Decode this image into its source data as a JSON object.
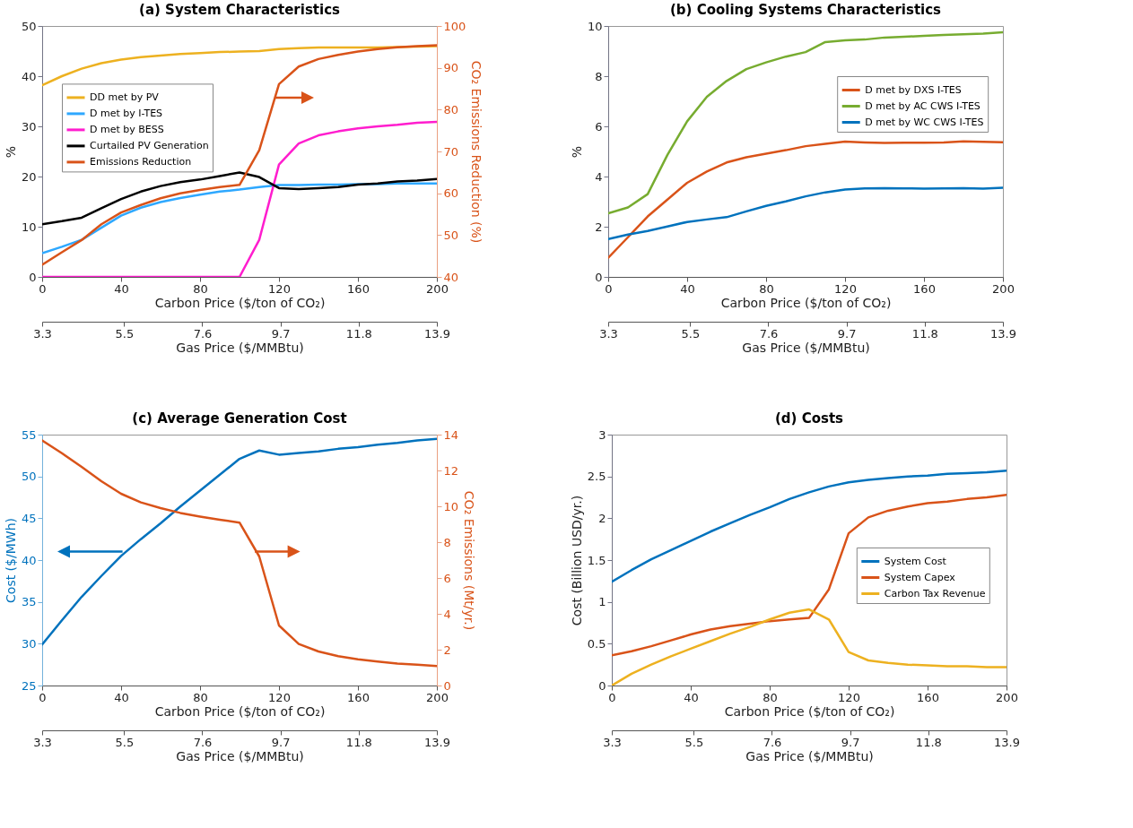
{
  "chart_data": [
    {
      "type": "line",
      "title": "(a) System Characteristics",
      "xlabel": "Carbon Price ($/ton of CO₂)",
      "x2label": "Gas Price ($/MMBtu)",
      "ylabel": "%",
      "y2label": "CO₂ Emissions Reduction (%)",
      "x": [
        0,
        10,
        20,
        30,
        40,
        50,
        60,
        70,
        80,
        90,
        100,
        110,
        120,
        130,
        140,
        150,
        160,
        170,
        180,
        190,
        200
      ],
      "xlim": [
        0,
        200
      ],
      "xticks": [
        0,
        40,
        80,
        120,
        160,
        200
      ],
      "x2lim": [
        3.3,
        13.9
      ],
      "x2ticks": [
        3.3,
        5.5,
        7.6,
        9.7,
        11.8,
        13.9
      ],
      "ylim": [
        0,
        50
      ],
      "yticks": [
        0,
        10,
        20,
        30,
        40,
        50
      ],
      "y2lim": [
        40,
        100
      ],
      "y2ticks": [
        40,
        50,
        60,
        70,
        80,
        90,
        100
      ],
      "legend": "left",
      "series": [
        {
          "name": "DD met by PV",
          "color": "#edb120",
          "values": [
            38.2,
            40,
            41.5,
            42.6,
            43.3,
            43.8,
            44.1,
            44.4,
            44.6,
            44.8,
            44.9,
            45,
            45.4,
            45.6,
            45.7,
            45.7,
            45.7,
            45.7,
            45.8,
            45.9,
            46
          ]
        },
        {
          "name": "D met by I-TES",
          "color": "#2ea8ff",
          "values": [
            4.7,
            6,
            7.4,
            9.8,
            12.2,
            13.8,
            14.9,
            15.7,
            16.4,
            17,
            17.4,
            17.9,
            18.3,
            18.3,
            18.4,
            18.4,
            18.5,
            18.5,
            18.6,
            18.6,
            18.6
          ]
        },
        {
          "name": "D met by BESS",
          "color": "#ff1dce",
          "values": [
            0,
            0,
            0,
            0,
            0,
            0,
            0,
            0,
            0,
            0,
            0,
            7.4,
            22.4,
            26.6,
            28.2,
            29,
            29.6,
            30,
            30.3,
            30.7,
            30.9
          ]
        },
        {
          "name": "Curtailed PV Generation",
          "color": "#000000",
          "values": [
            10.5,
            11.1,
            11.8,
            13.7,
            15.5,
            17,
            18.1,
            18.9,
            19.4,
            20.1,
            20.8,
            19.9,
            17.7,
            17.5,
            17.7,
            17.9,
            18.4,
            18.6,
            19,
            19.2,
            19.5
          ]
        },
        {
          "name": "Emissions Reduction",
          "color": "#d95319",
          "axis": "y2",
          "values": [
            42.9,
            45.9,
            48.8,
            52.6,
            55.4,
            57.2,
            58.8,
            60,
            60.8,
            61.5,
            62,
            70.3,
            86.1,
            90.3,
            92.1,
            93.1,
            93.9,
            94.5,
            94.9,
            95.2,
            95.4
          ]
        }
      ]
    },
    {
      "type": "line",
      "title": "(b) Cooling Systems Characteristics",
      "xlabel": "Carbon Price ($/ton of CO₂)",
      "x2label": "Gas Price ($/MMBtu)",
      "ylabel": "%",
      "x": [
        0,
        10,
        20,
        30,
        40,
        50,
        60,
        70,
        80,
        90,
        100,
        110,
        120,
        130,
        140,
        150,
        160,
        170,
        180,
        190,
        200
      ],
      "xlim": [
        0,
        200
      ],
      "xticks": [
        0,
        40,
        80,
        120,
        160,
        200
      ],
      "x2lim": [
        3.3,
        13.9
      ],
      "x2ticks": [
        3.3,
        5.5,
        7.6,
        9.7,
        11.8,
        13.9
      ],
      "ylim": [
        0,
        10
      ],
      "yticks": [
        0,
        2,
        4,
        6,
        8,
        10
      ],
      "legend": "top right",
      "series": [
        {
          "name": "D met by DXS I-TES",
          "color": "#d95319",
          "values": [
            0.76,
            1.58,
            2.41,
            3.08,
            3.75,
            4.2,
            4.56,
            4.77,
            4.91,
            5.05,
            5.21,
            5.3,
            5.39,
            5.36,
            5.34,
            5.35,
            5.35,
            5.36,
            5.4,
            5.38,
            5.37
          ]
        },
        {
          "name": "D met by AC CWS I-TES",
          "color": "#77ac30",
          "values": [
            2.53,
            2.77,
            3.3,
            4.86,
            6.2,
            7.18,
            7.81,
            8.28,
            8.55,
            8.78,
            8.96,
            9.36,
            9.43,
            9.46,
            9.54,
            9.57,
            9.61,
            9.64,
            9.67,
            9.7,
            9.75
          ]
        },
        {
          "name": "D met by WC CWS I-TES",
          "color": "#0072bd",
          "values": [
            1.51,
            1.69,
            1.83,
            2.01,
            2.19,
            2.29,
            2.38,
            2.61,
            2.83,
            3.01,
            3.21,
            3.37,
            3.48,
            3.53,
            3.54,
            3.53,
            3.52,
            3.53,
            3.54,
            3.52,
            3.55
          ]
        }
      ]
    },
    {
      "type": "line",
      "title": "(c) Average Generation Cost",
      "xlabel": "Carbon Price ($/ton of CO₂)",
      "x2label": "Gas Price ($/MMBtu)",
      "ylabel": "Cost ($/MWh)",
      "y2label": "CO₂ Emissions (Mt/yr.)",
      "x": [
        0,
        10,
        20,
        30,
        40,
        50,
        60,
        70,
        80,
        90,
        100,
        110,
        120,
        130,
        140,
        150,
        160,
        170,
        180,
        190,
        200
      ],
      "xlim": [
        0,
        200
      ],
      "xticks": [
        0,
        40,
        80,
        120,
        160,
        200
      ],
      "x2lim": [
        3.3,
        13.9
      ],
      "x2ticks": [
        3.3,
        5.5,
        7.6,
        9.7,
        11.8,
        13.9
      ],
      "ylim": [
        25,
        55
      ],
      "yticks": [
        25,
        30,
        35,
        40,
        45,
        50,
        55
      ],
      "y2lim": [
        0,
        14
      ],
      "y2ticks": [
        0,
        2,
        4,
        6,
        8,
        10,
        12,
        14
      ],
      "series": [
        {
          "color": "#0072bd",
          "values": [
            29.9,
            32.8,
            35.6,
            38.1,
            40.5,
            42.5,
            44.4,
            46.4,
            48.3,
            50.2,
            52.1,
            53.1,
            52.6,
            52.8,
            53,
            53.3,
            53.5,
            53.8,
            54,
            54.3,
            54.5
          ]
        },
        {
          "color": "#d95319",
          "axis": "y2",
          "values": [
            13.67,
            12.96,
            12.2,
            11.4,
            10.7,
            10.22,
            9.9,
            9.63,
            9.43,
            9.25,
            9.09,
            7.2,
            3.35,
            2.32,
            1.9,
            1.64,
            1.46,
            1.34,
            1.23,
            1.16,
            1.09
          ]
        }
      ]
    },
    {
      "type": "line",
      "title": "(d) Costs",
      "xlabel": "Carbon Price ($/ton of CO₂)",
      "x2label": "Gas Price ($/MMBtu)",
      "ylabel": "Cost (Billion USD/yr.)",
      "x": [
        0,
        10,
        20,
        30,
        40,
        50,
        60,
        70,
        80,
        90,
        100,
        110,
        120,
        130,
        140,
        150,
        160,
        170,
        180,
        190,
        200
      ],
      "xlim": [
        0,
        200
      ],
      "xticks": [
        0,
        40,
        80,
        120,
        160,
        200
      ],
      "x2lim": [
        3.3,
        13.9
      ],
      "x2ticks": [
        3.3,
        5.5,
        7.6,
        9.7,
        11.8,
        13.9
      ],
      "ylim": [
        0,
        3
      ],
      "yticks": [
        0,
        0.5,
        1,
        1.5,
        2,
        2.5,
        3
      ],
      "legend": "right",
      "series": [
        {
          "name": "System Cost",
          "color": "#0072bd",
          "values": [
            1.24,
            1.38,
            1.51,
            1.62,
            1.73,
            1.84,
            1.94,
            2.04,
            2.13,
            2.23,
            2.31,
            2.38,
            2.43,
            2.46,
            2.48,
            2.5,
            2.51,
            2.53,
            2.54,
            2.55,
            2.57
          ]
        },
        {
          "name": "System Capex",
          "color": "#d95319",
          "values": [
            0.36,
            0.41,
            0.47,
            0.54,
            0.61,
            0.67,
            0.71,
            0.74,
            0.77,
            0.79,
            0.81,
            1.15,
            1.82,
            2.01,
            2.09,
            2.14,
            2.18,
            2.2,
            2.23,
            2.25,
            2.28
          ]
        },
        {
          "name": "Carbon Tax Revenue",
          "color": "#edb120",
          "values": [
            0,
            0.14,
            0.25,
            0.35,
            0.44,
            0.53,
            0.62,
            0.7,
            0.79,
            0.87,
            0.91,
            0.79,
            0.4,
            0.3,
            0.27,
            0.25,
            0.24,
            0.23,
            0.23,
            0.22,
            0.22
          ]
        }
      ]
    }
  ]
}
